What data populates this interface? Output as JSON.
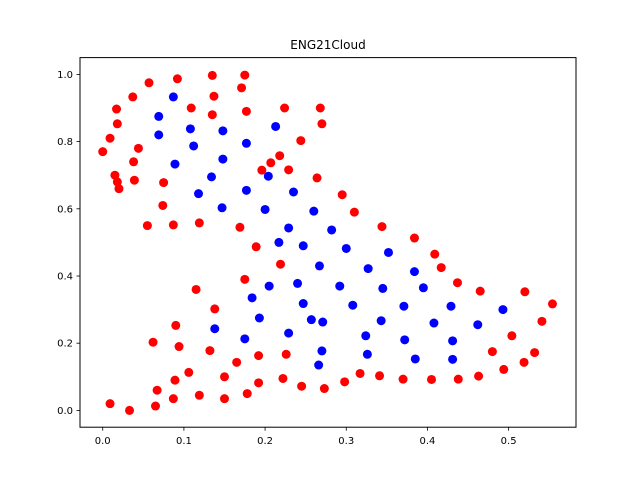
{
  "chart_data": {
    "type": "scatter",
    "title": "ENG21Cloud",
    "xlabel": "",
    "ylabel": "",
    "xlim": [
      -0.028,
      0.583
    ],
    "ylim": [
      -0.05,
      1.05
    ],
    "xticks": [
      0.0,
      0.1,
      0.2,
      0.3,
      0.4,
      0.5
    ],
    "xtick_labels": [
      "0.0",
      "0.1",
      "0.2",
      "0.3",
      "0.4",
      "0.5"
    ],
    "yticks": [
      0.0,
      0.2,
      0.4,
      0.6,
      0.8,
      1.0
    ],
    "ytick_labels": [
      "0.0",
      "0.2",
      "0.4",
      "0.6",
      "0.8",
      "1.0"
    ],
    "grid": false,
    "series": [
      {
        "color": "#ff0000",
        "points": [
          [
            0.0,
            0.77
          ],
          [
            0.009,
            0.81
          ],
          [
            0.018,
            0.853
          ],
          [
            0.017,
            0.897
          ],
          [
            0.037,
            0.933
          ],
          [
            0.057,
            0.975
          ],
          [
            0.092,
            0.987
          ],
          [
            0.135,
            0.997
          ],
          [
            0.175,
            0.998
          ],
          [
            0.171,
            0.96
          ],
          [
            0.137,
            0.935
          ],
          [
            0.135,
            0.88
          ],
          [
            0.109,
            0.9
          ],
          [
            0.177,
            0.89
          ],
          [
            0.224,
            0.9
          ],
          [
            0.268,
            0.9
          ],
          [
            0.27,
            0.853
          ],
          [
            0.244,
            0.803
          ],
          [
            0.218,
            0.758
          ],
          [
            0.207,
            0.737
          ],
          [
            0.229,
            0.716
          ],
          [
            0.196,
            0.715
          ],
          [
            0.264,
            0.692
          ],
          [
            0.295,
            0.642
          ],
          [
            0.31,
            0.59
          ],
          [
            0.344,
            0.547
          ],
          [
            0.384,
            0.513
          ],
          [
            0.409,
            0.465
          ],
          [
            0.417,
            0.425
          ],
          [
            0.437,
            0.38
          ],
          [
            0.465,
            0.355
          ],
          [
            0.52,
            0.353
          ],
          [
            0.554,
            0.317
          ],
          [
            0.541,
            0.265
          ],
          [
            0.504,
            0.222
          ],
          [
            0.532,
            0.172
          ],
          [
            0.519,
            0.143
          ],
          [
            0.494,
            0.122
          ],
          [
            0.48,
            0.175
          ],
          [
            0.463,
            0.102
          ],
          [
            0.438,
            0.093
          ],
          [
            0.405,
            0.092
          ],
          [
            0.37,
            0.093
          ],
          [
            0.341,
            0.103
          ],
          [
            0.317,
            0.11
          ],
          [
            0.298,
            0.085
          ],
          [
            0.273,
            0.065
          ],
          [
            0.245,
            0.072
          ],
          [
            0.222,
            0.095
          ],
          [
            0.192,
            0.082
          ],
          [
            0.178,
            0.05
          ],
          [
            0.15,
            0.035
          ],
          [
            0.119,
            0.045
          ],
          [
            0.087,
            0.035
          ],
          [
            0.067,
            0.06
          ],
          [
            0.065,
            0.013
          ],
          [
            0.033,
            0.0
          ],
          [
            0.009,
            0.02
          ],
          [
            0.106,
            0.113
          ],
          [
            0.089,
            0.09
          ],
          [
            0.15,
            0.1
          ],
          [
            0.165,
            0.143
          ],
          [
            0.192,
            0.163
          ],
          [
            0.226,
            0.167
          ],
          [
            0.132,
            0.178
          ],
          [
            0.094,
            0.19
          ],
          [
            0.062,
            0.203
          ],
          [
            0.09,
            0.253
          ],
          [
            0.138,
            0.302
          ],
          [
            0.115,
            0.36
          ],
          [
            0.175,
            0.39
          ],
          [
            0.219,
            0.435
          ],
          [
            0.189,
            0.487
          ],
          [
            0.169,
            0.545
          ],
          [
            0.119,
            0.558
          ],
          [
            0.087,
            0.552
          ],
          [
            0.055,
            0.55
          ],
          [
            0.074,
            0.61
          ],
          [
            0.039,
            0.685
          ],
          [
            0.018,
            0.68
          ],
          [
            0.075,
            0.678
          ],
          [
            0.015,
            0.7
          ],
          [
            0.02,
            0.66
          ],
          [
            0.038,
            0.74
          ],
          [
            0.044,
            0.78
          ]
        ]
      },
      {
        "color": "#0000ff",
        "points": [
          [
            0.069,
            0.875
          ],
          [
            0.087,
            0.933
          ],
          [
            0.069,
            0.82
          ],
          [
            0.108,
            0.838
          ],
          [
            0.112,
            0.787
          ],
          [
            0.089,
            0.733
          ],
          [
            0.148,
            0.832
          ],
          [
            0.177,
            0.795
          ],
          [
            0.213,
            0.845
          ],
          [
            0.148,
            0.748
          ],
          [
            0.134,
            0.695
          ],
          [
            0.118,
            0.645
          ],
          [
            0.177,
            0.655
          ],
          [
            0.147,
            0.603
          ],
          [
            0.204,
            0.697
          ],
          [
            0.235,
            0.65
          ],
          [
            0.2,
            0.598
          ],
          [
            0.26,
            0.593
          ],
          [
            0.229,
            0.543
          ],
          [
            0.282,
            0.537
          ],
          [
            0.247,
            0.49
          ],
          [
            0.3,
            0.482
          ],
          [
            0.217,
            0.5
          ],
          [
            0.267,
            0.43
          ],
          [
            0.327,
            0.422
          ],
          [
            0.352,
            0.47
          ],
          [
            0.384,
            0.413
          ],
          [
            0.395,
            0.365
          ],
          [
            0.345,
            0.363
          ],
          [
            0.292,
            0.37
          ],
          [
            0.24,
            0.378
          ],
          [
            0.205,
            0.37
          ],
          [
            0.184,
            0.335
          ],
          [
            0.193,
            0.275
          ],
          [
            0.175,
            0.213
          ],
          [
            0.138,
            0.243
          ],
          [
            0.229,
            0.23
          ],
          [
            0.257,
            0.27
          ],
          [
            0.247,
            0.318
          ],
          [
            0.308,
            0.313
          ],
          [
            0.324,
            0.222
          ],
          [
            0.271,
            0.263
          ],
          [
            0.343,
            0.267
          ],
          [
            0.371,
            0.31
          ],
          [
            0.372,
            0.21
          ],
          [
            0.326,
            0.167
          ],
          [
            0.27,
            0.177
          ],
          [
            0.266,
            0.135
          ],
          [
            0.385,
            0.153
          ],
          [
            0.408,
            0.26
          ],
          [
            0.429,
            0.31
          ],
          [
            0.431,
            0.207
          ],
          [
            0.431,
            0.152
          ],
          [
            0.462,
            0.255
          ],
          [
            0.493,
            0.3
          ]
        ]
      }
    ]
  }
}
